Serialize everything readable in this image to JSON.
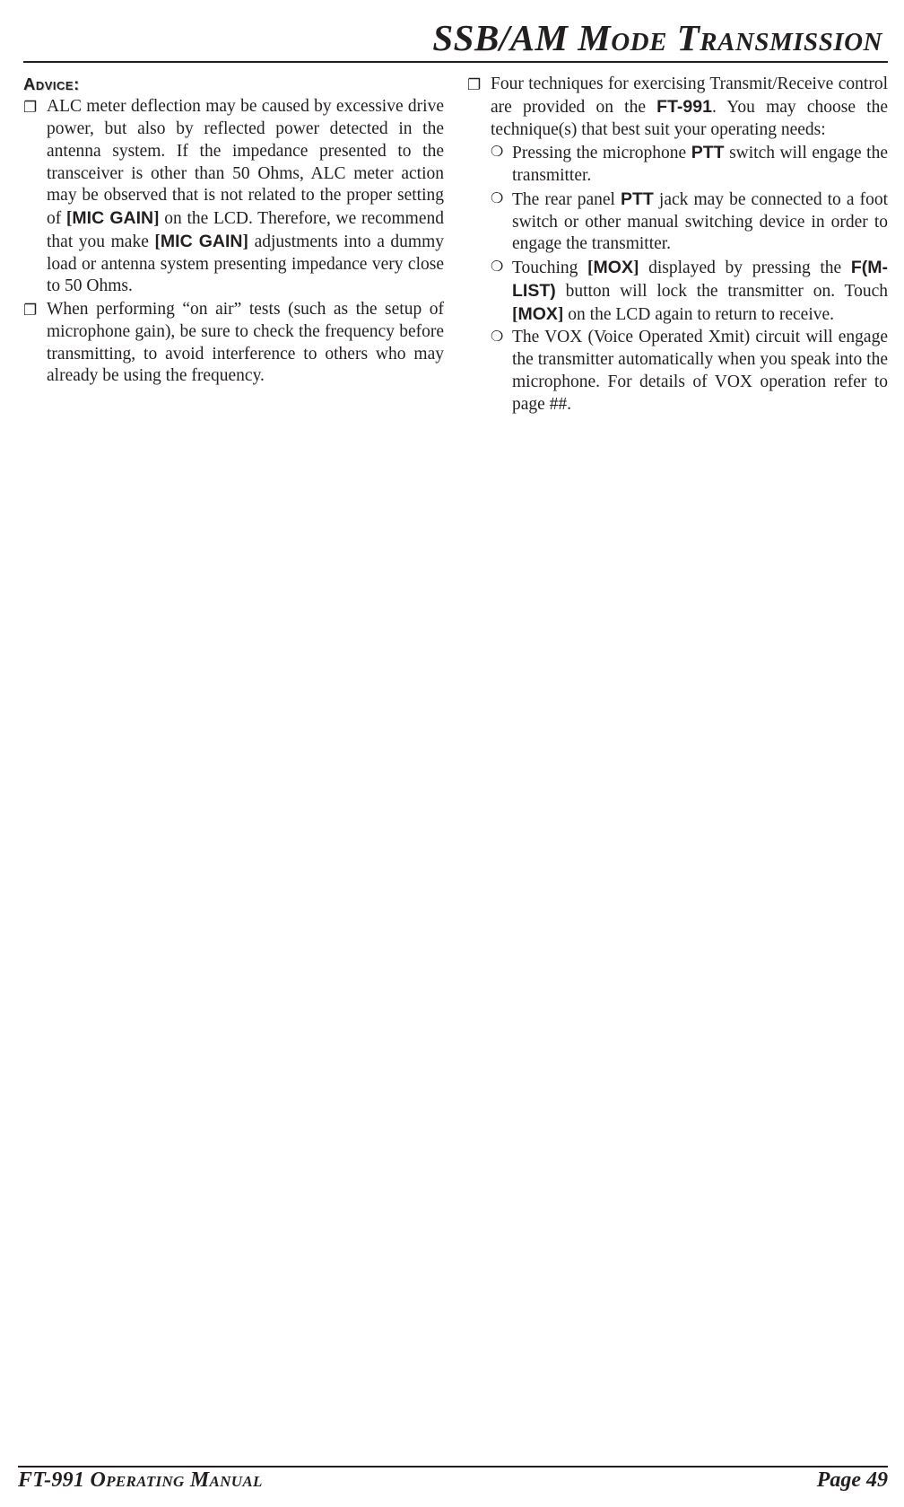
{
  "title": "SSB/AM Mode Transmission",
  "advice_heading": "Advice:",
  "left": {
    "item1_a": "ALC meter deflection may be caused by excessive drive power, but also by reflected power detected in the antenna system. If the impedance presented to the transceiver is other than 50 Ohms, ALC meter action may be observed that is not related to the proper setting of ",
    "mic_gain_1": "[",
    "mic_gain_txt": "MIC GAIN",
    "mic_gain_2": "]",
    "item1_b": " on the LCD. Therefore, we recommend that you make ",
    "item1_c": " adjustments into a dummy load or antenna system presenting impedance very close to 50 Ohms.",
    "item2": "When performing “on air” tests (such as the setup of microphone gain), be sure to check the frequency before transmitting, to avoid interference to others who may already be using the frequency."
  },
  "right": {
    "intro_a": "Four techniques for exercising Transmit/Receive control are provided on the ",
    "model": "FT-991",
    "intro_b": ". You  may choose the technique(s) that best suit your operating needs:",
    "sub1_a": "Pressing the microphone ",
    "ptt": "PTT",
    "sub1_b": " switch will engage the transmitter.",
    "sub2_a": "The rear panel ",
    "sub2_b": " jack may be connected to a foot switch or other manual switching device in order to engage the transmitter.",
    "sub3_a": "Touching ",
    "mox_open": "[",
    "mox": "MOX",
    "mox_close": "]",
    "sub3_b": " displayed by pressing the ",
    "fmlist": "F(M-LIST)",
    "sub3_c": " button will lock the transmitter on. Touch ",
    "sub3_d": " on the LCD again to return to receive.",
    "sub4": "The VOX (Voice Operated Xmit) circuit will engage the transmitter automatically when you speak into the microphone. For details of VOX operation refer to page ##."
  },
  "footer": {
    "left": "FT-991 Operating Manual",
    "right": "Page 49"
  }
}
